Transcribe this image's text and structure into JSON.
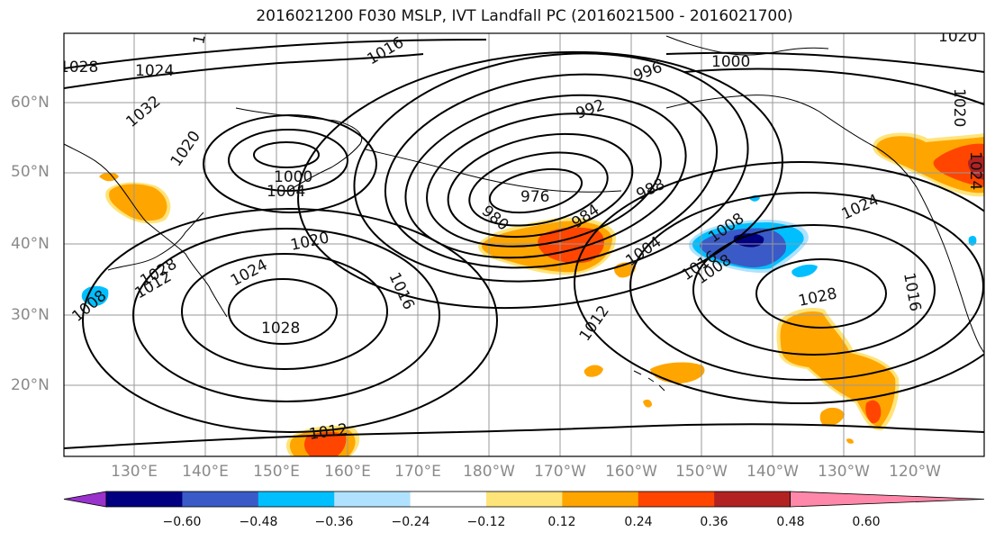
{
  "title": "2016021200 F030 MSLP, IVT Landfall PC (2016021500 - 2016021700)",
  "lat_labels": [
    "60°N",
    "50°N",
    "40°N",
    "30°N",
    "20°N"
  ],
  "lon_labels": [
    "130°E",
    "140°E",
    "150°E",
    "160°E",
    "170°E",
    "180°W",
    "170°W",
    "160°W",
    "150°W",
    "140°W",
    "130°W",
    "120°W"
  ],
  "contour_labels": [
    "1028",
    "1024",
    "1032",
    "1016",
    "1020",
    "1000",
    "1004",
    "996",
    "1000",
    "992",
    "976",
    "980",
    "984",
    "988",
    "1020",
    "1024",
    "1016",
    "1008",
    "1028",
    "1020",
    "1024",
    "1004",
    "1008",
    "1016",
    "1024",
    "1028",
    "1012",
    "1012",
    "1008",
    "1012",
    "1016",
    "1020",
    "1020",
    "1028"
  ],
  "colorbar": {
    "ticks": [
      "−0.60",
      "−0.48",
      "−0.36",
      "−0.24",
      "−0.12",
      "0.12",
      "0.24",
      "0.36",
      "0.48",
      "0.60"
    ],
    "colors": [
      "#9933CC",
      "#000080",
      "#3A5BC7",
      "#00BFFF",
      "#B0E2FF",
      "#FFFFFF",
      "#FFE47A",
      "#FFA500",
      "#FF4500",
      "#B22222",
      "#FF88AA"
    ]
  }
}
